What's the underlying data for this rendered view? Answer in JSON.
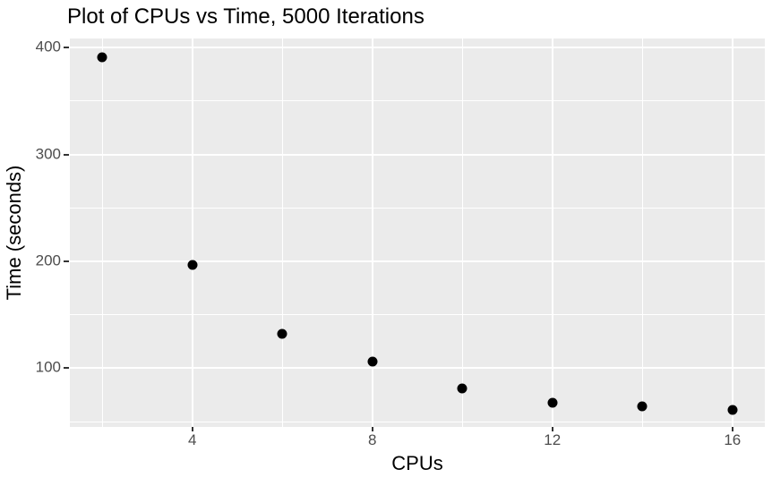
{
  "chart_data": {
    "type": "scatter",
    "title": "Plot of CPUs vs Time, 5000 Iterations",
    "xlabel": "CPUs",
    "ylabel": "Time (seconds)",
    "x": [
      2,
      4,
      6,
      8,
      10,
      12,
      14,
      16
    ],
    "y": [
      391,
      197,
      132,
      106,
      81,
      68,
      64,
      61
    ],
    "x_ticks": [
      4,
      8,
      12,
      16
    ],
    "y_ticks": [
      100,
      200,
      300,
      400
    ],
    "x_minor_ticks": [
      2,
      6,
      10,
      14
    ],
    "y_minor_ticks": [
      50,
      150,
      250,
      350
    ],
    "xlim": [
      1.28,
      16.72
    ],
    "ylim": [
      45,
      408.5
    ],
    "grid": true,
    "legend_position": "none",
    "style": "ggplot2-gray-theme",
    "colors": {
      "background": "#FFFFFF",
      "panel": "#EBEBEB",
      "gridline": "#FFFFFF",
      "point": "#000000",
      "tick_label": "#4D4D4D",
      "tick_mark": "#333333",
      "axis_title": "#000000",
      "title": "#000000"
    }
  }
}
